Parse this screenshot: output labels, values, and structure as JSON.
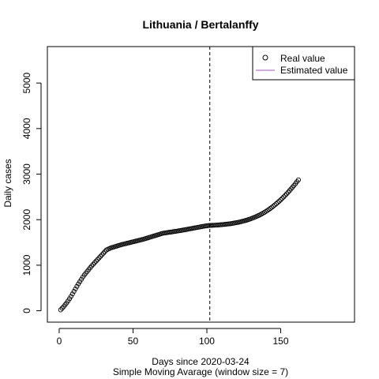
{
  "chart_data": {
    "type": "scatter",
    "title": "Lithuania / Bertalanffy",
    "xlabel": "Days since 2020-03-24",
    "sublabel": "Simple Moving Avarage (window size = 7)",
    "ylabel": "Daily cases",
    "xlim": [
      -8,
      200
    ],
    "ylim": [
      -250,
      5800
    ],
    "xticks": [
      0,
      50,
      100,
      150
    ],
    "yticks": [
      0,
      1000,
      2000,
      3000,
      4000,
      5000
    ],
    "vline_x": 102,
    "legend": {
      "position": "top-right",
      "entries": [
        {
          "label": "Real value",
          "symbol": "circle",
          "color": "#000000"
        },
        {
          "label": "Estimated value",
          "symbol": "line",
          "color": "#9b59b6"
        }
      ]
    },
    "series": [
      {
        "name": "Real value",
        "style": "points",
        "x": [
          1,
          2,
          3,
          4,
          5,
          6,
          7,
          8,
          9,
          10,
          11,
          12,
          13,
          14,
          15,
          16,
          17,
          18,
          19,
          20,
          21,
          22,
          23,
          24,
          25,
          26,
          27,
          28,
          29,
          30,
          31,
          32,
          33,
          34,
          35,
          36,
          37,
          38,
          39,
          40,
          41,
          42,
          43,
          44,
          45,
          46,
          47,
          48,
          49,
          50,
          51,
          52,
          53,
          54,
          55,
          56,
          57,
          58,
          59,
          60,
          61,
          62,
          63,
          64,
          65,
          66,
          67,
          68,
          69,
          70,
          71,
          72,
          73,
          74,
          75,
          76,
          77,
          78,
          79,
          80,
          81,
          82,
          83,
          84,
          85,
          86,
          87,
          88,
          89,
          90,
          91,
          92,
          93,
          94,
          95,
          96,
          97,
          98,
          99,
          100,
          101,
          102,
          103,
          104,
          105,
          106,
          107,
          108,
          109,
          110,
          111,
          112,
          113,
          114,
          115,
          116,
          117,
          118,
          119,
          120,
          121,
          122,
          123,
          124,
          125,
          126,
          127,
          128,
          129,
          130,
          131,
          132,
          133,
          134,
          135,
          136,
          137,
          138,
          139,
          140,
          141,
          142,
          143,
          144,
          145,
          146,
          147,
          148,
          149,
          150,
          151,
          152,
          153,
          154,
          155,
          156,
          157,
          158,
          159,
          160,
          161,
          162
        ],
        "y": [
          20,
          55,
          90,
          130,
          170,
          215,
          265,
          315,
          370,
          425,
          480,
          535,
          590,
          640,
          690,
          740,
          785,
          825,
          865,
          905,
          945,
          985,
          1020,
          1055,
          1090,
          1125,
          1160,
          1195,
          1230,
          1265,
          1300,
          1335,
          1350,
          1365,
          1380,
          1390,
          1400,
          1410,
          1420,
          1430,
          1440,
          1450,
          1458,
          1466,
          1474,
          1482,
          1490,
          1498,
          1506,
          1514,
          1522,
          1530,
          1538,
          1546,
          1554,
          1562,
          1570,
          1580,
          1590,
          1600,
          1610,
          1620,
          1630,
          1640,
          1650,
          1660,
          1670,
          1680,
          1690,
          1700,
          1705,
          1710,
          1715,
          1720,
          1725,
          1730,
          1735,
          1740,
          1745,
          1750,
          1755,
          1760,
          1766,
          1772,
          1778,
          1784,
          1790,
          1796,
          1802,
          1808,
          1814,
          1820,
          1826,
          1832,
          1838,
          1844,
          1850,
          1856,
          1862,
          1866,
          1870,
          1872,
          1874,
          1876,
          1878,
          1880,
          1882,
          1884,
          1887,
          1890,
          1893,
          1896,
          1900,
          1904,
          1908,
          1912,
          1917,
          1922,
          1928,
          1934,
          1940,
          1947,
          1955,
          1963,
          1971,
          1980,
          1990,
          2000,
          2011,
          2023,
          2035,
          2048,
          2062,
          2076,
          2091,
          2107,
          2124,
          2142,
          2161,
          2181,
          2202,
          2224,
          2247,
          2271,
          2296,
          2322,
          2349,
          2377,
          2406,
          2436,
          2467,
          2499,
          2532,
          2566,
          2601,
          2637,
          2674,
          2712,
          2751,
          2791,
          2832,
          2874
        ]
      }
    ]
  }
}
